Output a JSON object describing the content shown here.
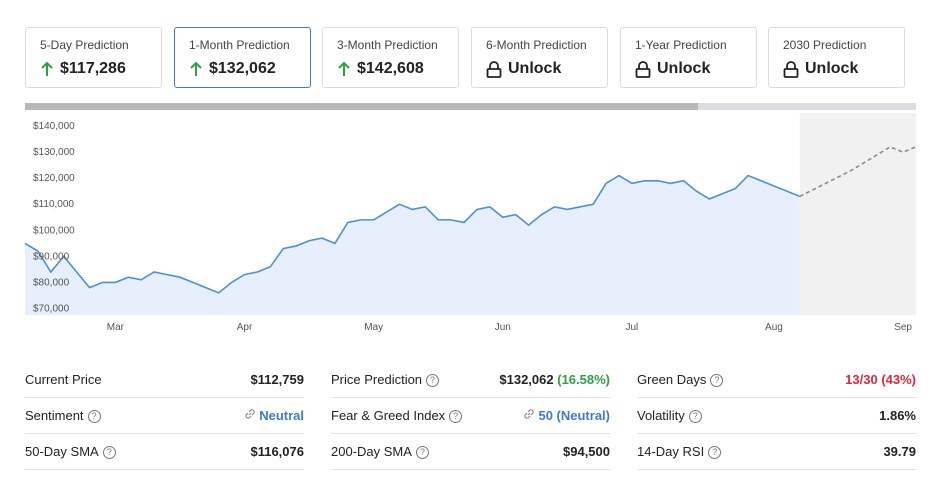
{
  "cards": [
    {
      "label": "5-Day Prediction",
      "value": "$117,286"
    },
    {
      "label": "1-Month Prediction",
      "value": "$132,062"
    },
    {
      "label": "3-Month Prediction",
      "value": "$142,608"
    },
    {
      "label": "6-Month Prediction",
      "value": "Unlock"
    },
    {
      "label": "1-Year Prediction",
      "value": "Unlock"
    },
    {
      "label": "2030 Prediction",
      "value": "Unlock"
    }
  ],
  "chart_data": {
    "type": "line",
    "categories": [
      null,
      null,
      null,
      null,
      null,
      null,
      null,
      "Mar",
      null,
      null,
      null,
      null,
      null,
      null,
      null,
      null,
      null,
      "Apr",
      null,
      null,
      null,
      null,
      null,
      null,
      null,
      null,
      null,
      "May",
      null,
      null,
      null,
      null,
      null,
      null,
      null,
      null,
      null,
      "Jun",
      null,
      null,
      null,
      null,
      null,
      null,
      null,
      null,
      null,
      "Jul",
      null,
      null,
      null,
      null,
      null,
      null,
      null,
      null,
      null,
      null,
      "Aug",
      null,
      null,
      null,
      null,
      null,
      null,
      null,
      null,
      null,
      "Sep",
      null
    ],
    "series": [
      {
        "color": "#4a90d9",
        "values": [
          95000,
          92000,
          84000,
          90000,
          84000,
          78000,
          80000,
          80000,
          82000,
          81000,
          84000,
          83000,
          82000,
          80000,
          78000,
          76000,
          80000,
          83000,
          84000,
          86000,
          93000,
          94000,
          96000,
          97000,
          95000,
          103000,
          104000,
          104000,
          107000,
          110000,
          108000,
          109000,
          104000,
          104000,
          103000,
          108000,
          109000,
          105000,
          106000,
          102000,
          106000,
          109000,
          108000,
          109000,
          110000,
          118000,
          121000,
          118000,
          119000,
          119000,
          118000,
          119000,
          115000,
          112000,
          114000,
          116000,
          121000,
          119000,
          117000,
          115000,
          113000,
          null,
          null,
          null,
          null,
          null,
          null,
          null,
          null,
          null
        ]
      },
      {
        "color": "#8a8a8a",
        "values": [
          null,
          null,
          null,
          null,
          null,
          null,
          null,
          null,
          null,
          null,
          null,
          null,
          null,
          null,
          null,
          null,
          null,
          null,
          null,
          null,
          null,
          null,
          null,
          null,
          null,
          null,
          null,
          null,
          null,
          null,
          null,
          null,
          null,
          null,
          null,
          null,
          null,
          null,
          null,
          null,
          null,
          null,
          null,
          null,
          null,
          null,
          null,
          null,
          null,
          null,
          null,
          null,
          null,
          null,
          null,
          null,
          null,
          null,
          null,
          null,
          113000,
          115500,
          118000,
          120500,
          123000,
          126000,
          129000,
          132000,
          130000,
          132000
        ]
      }
    ],
    "ylim": [
      67500,
      145000
    ],
    "yticks": [
      {
        "value": 70000,
        "label": "$70,000"
      },
      {
        "value": 80000,
        "label": "$80,000"
      },
      {
        "value": 90000,
        "label": "$90,000"
      },
      {
        "value": 100000,
        "label": "$100,000"
      },
      {
        "value": 110000,
        "label": "$110,000"
      },
      {
        "value": 120000,
        "label": "$120,000"
      },
      {
        "value": 130000,
        "label": "$130,000"
      },
      {
        "value": 140000,
        "label": "$140,000"
      }
    ],
    "grid": false
  },
  "stats": [
    [
      {
        "label": "Current Price",
        "value": "$112,759"
      },
      {
        "label": "Price Prediction",
        "value": "$132,062",
        "change": "(16.58%)"
      },
      {
        "label": "Green Days",
        "value": "13/30 (43%)"
      }
    ],
    [
      {
        "label": "Sentiment",
        "value": "Neutral"
      },
      {
        "label": "Fear & Greed Index",
        "value": "50 (Neutral)"
      },
      {
        "label": "Volatility",
        "value": "1.86%"
      }
    ],
    [
      {
        "label": "50-Day SMA",
        "value": "$116,076"
      },
      {
        "label": "200-Day SMA",
        "value": "$94,500"
      },
      {
        "label": "14-Day RSI",
        "value": "39.79"
      }
    ]
  ]
}
